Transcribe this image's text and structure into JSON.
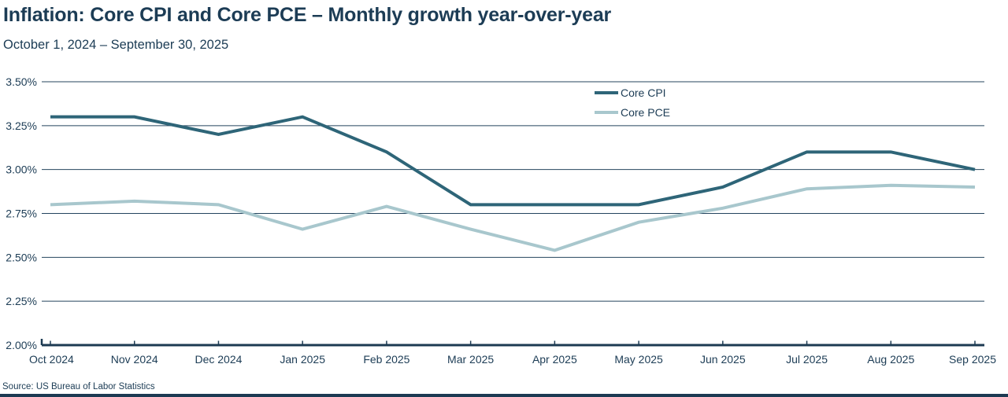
{
  "header": {
    "title": "Inflation: Core CPI and Core PCE – Monthly growth year-over-year",
    "subtitle": "October 1, 2024 – September 30, 2025"
  },
  "footer": {
    "source": "Source: US Bureau of Labor Statistics"
  },
  "colors": {
    "core_cpi_line": "#2E6578",
    "core_pce_line": "#A8C7CD",
    "gridline": "#24445E",
    "axis_line": "#1C3A52",
    "text": "#1C3C55",
    "background": "#FFFFFF",
    "bottom_border": "#1C3A52"
  },
  "chart_data": {
    "type": "line",
    "title": "Inflation: Core CPI and Core PCE – Monthly growth year-over-year",
    "subtitle": "October 1, 2024 – September 30, 2025",
    "categories": [
      "Oct 2024",
      "Nov 2024",
      "Dec 2024",
      "Jan 2025",
      "Feb 2025",
      "Mar 2025",
      "Apr 2025",
      "May 2025",
      "Jun 2025",
      "Jul 2025",
      "Aug 2025",
      "Sep 2025"
    ],
    "series": [
      {
        "name": "Core CPI",
        "color": "#2E6578",
        "values": [
          3.3,
          3.3,
          3.2,
          3.3,
          3.1,
          2.8,
          2.8,
          2.8,
          2.9,
          3.1,
          3.1,
          3.0
        ]
      },
      {
        "name": "Core PCE",
        "color": "#A8C7CD",
        "values": [
          2.8,
          2.82,
          2.8,
          2.66,
          2.79,
          2.66,
          2.54,
          2.7,
          2.78,
          2.89,
          2.91,
          2.9
        ]
      }
    ],
    "ylabel": "",
    "xlabel": "",
    "ylim": [
      2.0,
      3.5
    ],
    "ytick_step": 0.25,
    "ytick_labels": [
      "3.50%",
      "3.25%",
      "3.00%",
      "2.75%",
      "2.50%",
      "2.25%",
      "2.00%"
    ],
    "grid": true,
    "legend_position": "top-right-inside"
  }
}
